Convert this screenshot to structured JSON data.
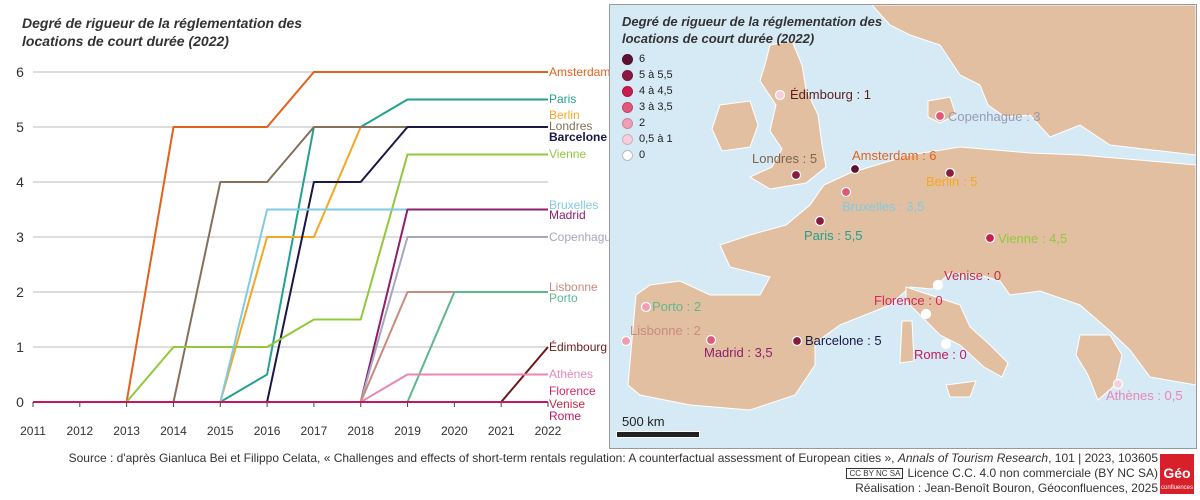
{
  "title_line1": "Degré de rigueur de la réglementation des",
  "title_line2": "locations de court durée (2022)",
  "chart_data": {
    "type": "line",
    "title": "Degré de rigueur de la réglementation des locations de court durée (2022)",
    "x": [
      2011,
      2012,
      2013,
      2014,
      2015,
      2016,
      2017,
      2018,
      2019,
      2020,
      2021,
      2022
    ],
    "xlim": [
      2011,
      2022
    ],
    "ylim": [
      0,
      6
    ],
    "yticks": [
      0,
      1,
      2,
      3,
      4,
      5,
      6
    ],
    "grid": true,
    "series": [
      {
        "name": "Amsterdam",
        "color": "#e2621b",
        "values": [
          0,
          0,
          0,
          5,
          5,
          5,
          6,
          6,
          6,
          6,
          6,
          6
        ]
      },
      {
        "name": "Paris",
        "color": "#23a090",
        "values": [
          0,
          0,
          0,
          0,
          0,
          0.5,
          5,
          5,
          5.5,
          5.5,
          5.5,
          5.5
        ]
      },
      {
        "name": "Berlin",
        "color": "#f5a623",
        "values": [
          0,
          0,
          0,
          0,
          0,
          3,
          3,
          5,
          5,
          5,
          5,
          5
        ]
      },
      {
        "name": "Londres",
        "color": "#85705c",
        "values": [
          0,
          0,
          0,
          0,
          4,
          4,
          5,
          5,
          5,
          5,
          5,
          5
        ]
      },
      {
        "name": "Barcelone",
        "color": "#1a1846",
        "values": [
          0,
          0,
          0,
          0,
          0,
          0,
          4,
          4,
          5,
          5,
          5,
          5
        ]
      },
      {
        "name": "Vienne",
        "color": "#92c83e",
        "values": [
          0,
          0,
          0,
          1,
          1,
          1,
          1.5,
          1.5,
          4.5,
          4.5,
          4.5,
          4.5
        ]
      },
      {
        "name": "Bruxelles",
        "color": "#7fcbe4",
        "values": [
          0,
          0,
          0,
          0,
          0,
          3.5,
          3.5,
          3.5,
          3.5,
          3.5,
          3.5,
          3.5
        ]
      },
      {
        "name": "Madrid",
        "color": "#8e1f6e",
        "values": [
          0,
          0,
          0,
          0,
          0,
          0,
          0,
          0,
          3.5,
          3.5,
          3.5,
          3.5
        ]
      },
      {
        "name": "Copenhague",
        "color": "#a6a6bc",
        "values": [
          0,
          0,
          0,
          0,
          0,
          0,
          0,
          0,
          3,
          3,
          3,
          3
        ]
      },
      {
        "name": "Lisbonne",
        "color": "#c98b7e",
        "values": [
          0,
          0,
          0,
          0,
          0,
          0,
          0,
          0,
          2,
          2,
          2,
          2
        ]
      },
      {
        "name": "Porto",
        "color": "#5db88e",
        "values": [
          0,
          0,
          0,
          0,
          0,
          0,
          0,
          0,
          0,
          2,
          2,
          2
        ]
      },
      {
        "name": "Édimbourg",
        "color": "#6e1919",
        "values": [
          0,
          0,
          0,
          0,
          0,
          0,
          0,
          0,
          0,
          0,
          0,
          1
        ]
      },
      {
        "name": "Athènes",
        "color": "#ea86b5",
        "values": [
          0,
          0,
          0,
          0,
          0,
          0,
          0,
          0,
          0.5,
          0.5,
          0.5,
          0.5
        ]
      },
      {
        "name": "Florence",
        "color": "#d6285e",
        "values": [
          0,
          0,
          0,
          0,
          0,
          0,
          0,
          0,
          0,
          0,
          0,
          0
        ]
      },
      {
        "name": "Venise",
        "color": "#c72a3f",
        "values": [
          0,
          0,
          0,
          0,
          0,
          0,
          0,
          0,
          0,
          0,
          0,
          0
        ]
      },
      {
        "name": "Rome",
        "color": "#c2185b",
        "values": [
          0,
          0,
          0,
          0,
          0,
          0,
          0,
          0,
          0,
          0,
          0,
          0
        ]
      }
    ]
  },
  "map": {
    "title_line1": "Degré de rigueur de la réglementation des",
    "title_line2": "locations de court durée (2022)",
    "legend": [
      {
        "label": "6",
        "color": "#5d1235"
      },
      {
        "label": "5 à 5,5",
        "color": "#8b1a40"
      },
      {
        "label": "4 à 4,5",
        "color": "#c81d4e"
      },
      {
        "label": "3 à 3,5",
        "color": "#e0587a"
      },
      {
        "label": "2",
        "color": "#ef9eb4"
      },
      {
        "label": "0,5 à 1",
        "color": "#f6cfdb"
      },
      {
        "label": "0",
        "color": "#ffffff"
      }
    ],
    "cities": [
      {
        "label": "Édimbourg : 1",
        "color": "#5a1e1e",
        "dot": "#f6cfdb"
      },
      {
        "label": "Copenhague : 3",
        "color": "#9a9ab0",
        "dot": "#e0587a"
      },
      {
        "label": "Londres : 5",
        "color": "#7a6550",
        "dot": "#8b1a40"
      },
      {
        "label": "Amsterdam : 6",
        "color": "#e2621b",
        "dot": "#5d1235"
      },
      {
        "label": "Berlin : 5",
        "color": "#f5a623",
        "dot": "#8b1a40"
      },
      {
        "label": "Bruxelles : 3,5",
        "color": "#7fcbe4",
        "dot": "#e0587a"
      },
      {
        "label": "Paris : 5,5",
        "color": "#23a090",
        "dot": "#8b1a40"
      },
      {
        "label": "Vienne : 4,5",
        "color": "#92c83e",
        "dot": "#c81d4e"
      },
      {
        "label": "Venise : 0",
        "color": "#c72a3f",
        "dot": "#ffffff"
      },
      {
        "label": "Florence : 0",
        "color": "#d6285e",
        "dot": "#ffffff"
      },
      {
        "label": "Porto : 2",
        "color": "#5db88e",
        "dot": "#ef9eb4"
      },
      {
        "label": "Lisbonne : 2",
        "color": "#c98b7e",
        "dot": "#ef9eb4"
      },
      {
        "label": "Madrid : 3,5",
        "color": "#8e1f6e",
        "dot": "#e0587a"
      },
      {
        "label": "Barcelone : 5",
        "color": "#1a1846",
        "dot": "#8b1a40"
      },
      {
        "label": "Rome : 0",
        "color": "#c2185b",
        "dot": "#ffffff"
      },
      {
        "label": "Athènes : 0,5",
        "color": "#ea86b5",
        "dot": "#f6cfdb"
      }
    ],
    "scale_label": "500 km"
  },
  "footer": {
    "source_prefix": "Source : d'après Gianluca Bei et Filippo Celata, « Challenges and effects of short-term rentals regulation: A counterfactual assessment of European cities », ",
    "source_journal": "Annals of Tourism Research",
    "source_suffix": ", 101 | 2023, 103605",
    "cc_badge": "CC BY NC SA",
    "license": "Licence C.C. 4.0 non commerciale (BY NC SA)",
    "credit": "Réalisation : Jean-Benoît Bouron, Géoconfluences, 2025",
    "logo_text": "Géo",
    "logo_subtext": "confluences"
  }
}
